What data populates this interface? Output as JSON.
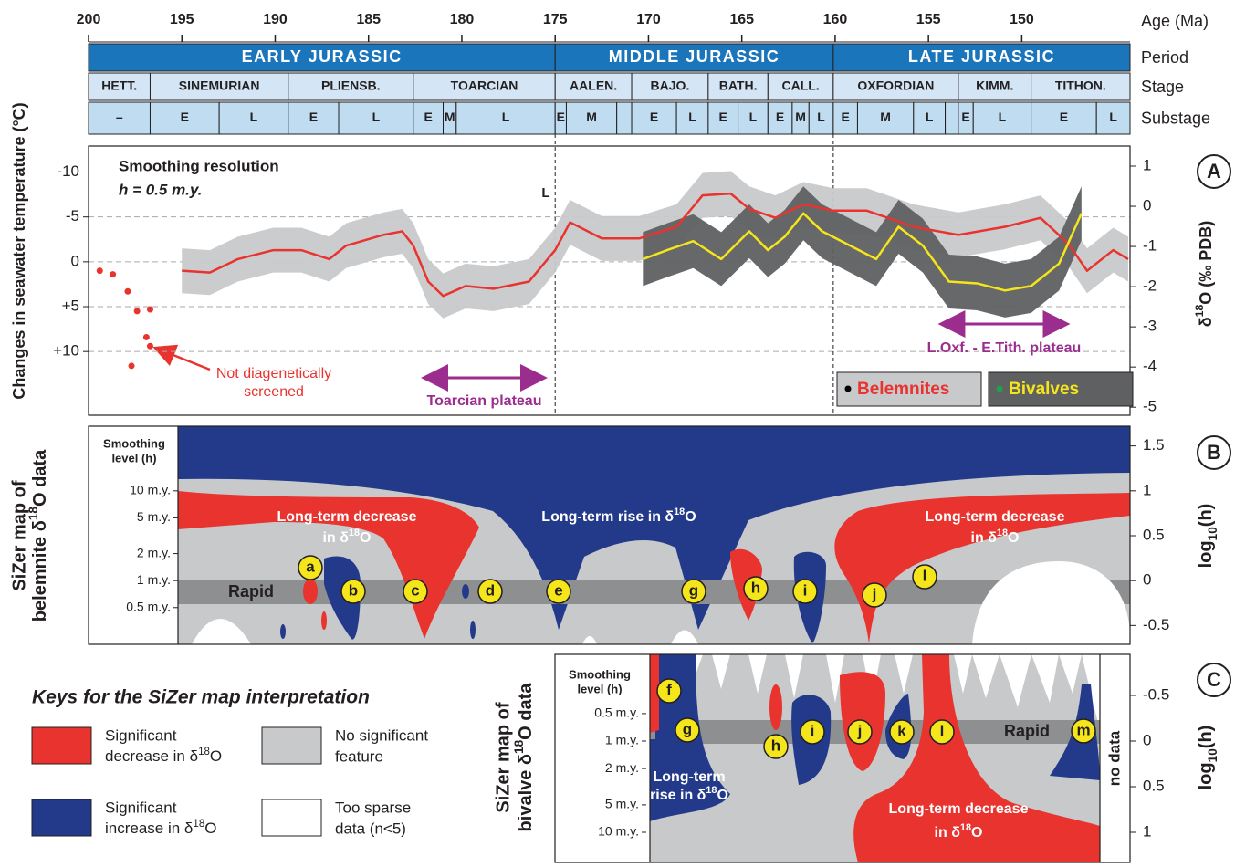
{
  "age_axis": {
    "label": "Age (Ma)",
    "xlim": [
      200,
      144.2
    ],
    "xticks": [
      200,
      195,
      190,
      185,
      180,
      175,
      170,
      165,
      160,
      155,
      150
    ]
  },
  "timescale": {
    "row_labels": [
      "Period",
      "Stage",
      "Substage"
    ],
    "periods": [
      {
        "label": "EARLY JURASSIC",
        "start": 200,
        "end": 175.0
      },
      {
        "label": "MIDDLE JURASSIC",
        "start": 175.0,
        "end": 160.1
      },
      {
        "label": "LATE JURASSIC",
        "start": 160.1,
        "end": 144.2
      }
    ],
    "stages": [
      {
        "label": "HETT.",
        "start": 200,
        "end": 196.7
      },
      {
        "label": "SINEMURIAN",
        "start": 196.7,
        "end": 189.3
      },
      {
        "label": "PLIENSB.",
        "start": 189.3,
        "end": 182.6
      },
      {
        "label": "TOARCIAN",
        "start": 182.6,
        "end": 175.0
      },
      {
        "label": "AALEN.",
        "start": 175.0,
        "end": 170.9
      },
      {
        "label": "BAJO.",
        "start": 170.9,
        "end": 166.8
      },
      {
        "label": "BATH.",
        "start": 166.8,
        "end": 163.6
      },
      {
        "label": "CALL.",
        "start": 163.6,
        "end": 160.1
      },
      {
        "label": "OXFORDIAN",
        "start": 160.1,
        "end": 153.4
      },
      {
        "label": "KIMM.",
        "start": 153.4,
        "end": 149.5
      },
      {
        "label": "TITHON.",
        "start": 149.5,
        "end": 144.2
      }
    ],
    "substages": [
      {
        "label": "–",
        "start": 200,
        "end": 196.7
      },
      {
        "label": "E",
        "start": 196.7,
        "end": 193.0
      },
      {
        "label": "L",
        "start": 193.0,
        "end": 189.3
      },
      {
        "label": "E",
        "start": 189.3,
        "end": 186.6
      },
      {
        "label": "L",
        "start": 186.6,
        "end": 182.6
      },
      {
        "label": "E",
        "start": 182.6,
        "end": 181.0
      },
      {
        "label": "M",
        "start": 181.0,
        "end": 180.3
      },
      {
        "label": "L",
        "start": 180.3,
        "end": 175.0
      },
      {
        "label": "E",
        "start": 175.0,
        "end": 174.4
      },
      {
        "label": "M",
        "start": 174.4,
        "end": 171.7
      },
      {
        "start": 171.7,
        "end": 170.9
      },
      {
        "label": "E",
        "start": 170.9,
        "end": 168.5
      },
      {
        "label": "L",
        "start": 168.5,
        "end": 166.8
      },
      {
        "label": "E",
        "start": 166.8,
        "end": 165.2
      },
      {
        "label": "L",
        "start": 165.2,
        "end": 163.6
      },
      {
        "label": "E",
        "start": 163.6,
        "end": 162.3
      },
      {
        "label": "M",
        "start": 162.3,
        "end": 161.4
      },
      {
        "label": "L",
        "start": 161.4,
        "end": 160.1
      },
      {
        "label": "E",
        "start": 160.1,
        "end": 158.8
      },
      {
        "label": "M",
        "start": 158.8,
        "end": 155.8
      },
      {
        "label": "L",
        "start": 155.8,
        "end": 154.1
      },
      {
        "start": 154.1,
        "end": 153.4
      },
      {
        "label": "E",
        "start": 153.4,
        "end": 152.6
      },
      {
        "label": "L",
        "start": 152.6,
        "end": 149.5
      },
      {
        "label": "E",
        "start": 149.5,
        "end": 146.0
      },
      {
        "label": "L",
        "start": 146.0,
        "end": 144.2
      }
    ]
  },
  "chart_data": [
    {
      "type": "line",
      "panel": "A",
      "y_label": "Changes in seawater temperature (°C)",
      "ylim": [
        17.1,
        -12.9
      ],
      "yticks": [
        -10,
        -5,
        0,
        {
          "value": 5,
          "label": "+5"
        },
        {
          "value": 10,
          "label": "+10"
        }
      ],
      "y2_label": [
        {
          "text": "δ"
        },
        {
          "text": "18",
          "sup": true
        },
        {
          "text": "O (‰ PDB)"
        }
      ],
      "y2lim": [
        -5.2,
        1.5
      ],
      "y2ticks": [
        1,
        0,
        -1,
        -2,
        -3,
        -4,
        -5
      ],
      "grid": true,
      "legend": "lower right",
      "annotations": {
        "smoothing": "Smoothing resolution",
        "resolution": "h = 0.5 m.y.",
        "late_marker": "L",
        "unscreened": [
          "Not diagenetically",
          "screened"
        ],
        "unscreened_points": {
          "color": "#e8332e",
          "x": [
            199.4,
            198.7,
            197.9,
            197.4,
            196.7,
            196.9,
            196.7,
            197.7
          ],
          "values": [
            1.0,
            1.4,
            3.3,
            5.5,
            5.3,
            8.4,
            9.4,
            11.6
          ]
        },
        "plateau_color": "#9b2d8e",
        "plateaus": [
          {
            "label": "Toarcian plateau",
            "start": 182.1,
            "end": 175.5
          },
          {
            "label": "L.Oxf. - E.Tith. plateau",
            "start": 154.4,
            "end": 147.5
          }
        ]
      },
      "series": [
        {
          "name": "Belemnites",
          "color": "#e8332e",
          "point_color": "#000000",
          "band_color": "#c8c9cb",
          "x": [
            195.0,
            193.5,
            192.0,
            190.1,
            188.6,
            187.1,
            186.2,
            184.2,
            183.2,
            182.6,
            181.8,
            181.0,
            179.8,
            178.3,
            176.4,
            175.0,
            174.2,
            172.5,
            170.5,
            168.5,
            167.1,
            165.6,
            164.6,
            163.2,
            161.7,
            160.1,
            158.3,
            155.8,
            153.4,
            150.9,
            149.0,
            147.5,
            146.5,
            145.1,
            144.3
          ],
          "values": [
            1.0,
            1.2,
            -0.3,
            -1.3,
            -1.3,
            -0.3,
            -1.8,
            -3.0,
            -3.4,
            -1.8,
            2.2,
            3.8,
            2.7,
            3.0,
            2.2,
            -1.3,
            -4.4,
            -2.6,
            -2.6,
            -3.9,
            -7.4,
            -7.6,
            -5.9,
            -4.9,
            -6.4,
            -5.7,
            -5.7,
            -3.9,
            -3.0,
            -3.9,
            -4.9,
            -2.0,
            1.0,
            -1.3,
            -0.3
          ],
          "band_min": [
            -1.5,
            -1.3,
            -2.8,
            -3.8,
            -3.8,
            -2.8,
            -4.3,
            -5.5,
            -5.9,
            -4.3,
            -0.3,
            1.3,
            0.2,
            0.5,
            -0.3,
            -3.8,
            -6.9,
            -5.1,
            -5.1,
            -6.4,
            -9.9,
            -10.1,
            -8.4,
            -7.4,
            -8.9,
            -8.2,
            -8.2,
            -6.4,
            -5.5,
            -6.4,
            -7.4,
            -4.5,
            -1.5,
            -3.8,
            -2.8
          ],
          "band_max": [
            3.5,
            3.7,
            2.2,
            1.2,
            1.2,
            2.2,
            0.7,
            -0.5,
            -0.9,
            0.7,
            4.7,
            6.3,
            5.2,
            5.5,
            4.7,
            1.2,
            -1.9,
            -0.1,
            -0.1,
            -1.4,
            -4.9,
            -5.1,
            -3.4,
            -2.4,
            -3.9,
            -3.2,
            -3.2,
            -1.4,
            -0.5,
            -1.4,
            -2.4,
            0.5,
            3.5,
            1.2,
            2.2
          ]
        },
        {
          "name": "Bivalves",
          "color": "#f5e51b",
          "point_color": "#1aa34a",
          "band_color": "#5f6062",
          "x": [
            170.3,
            169.0,
            167.6,
            166.1,
            164.6,
            163.6,
            162.7,
            161.7,
            160.7,
            159.2,
            157.8,
            156.6,
            155.3,
            153.9,
            152.4,
            150.9,
            149.5,
            148.0,
            146.8
          ],
          "values": [
            -0.3,
            -1.3,
            -2.3,
            -0.3,
            -3.4,
            -1.3,
            -2.8,
            -5.4,
            -3.4,
            -1.8,
            -0.3,
            -3.9,
            -1.8,
            2.2,
            2.4,
            3.2,
            2.7,
            0.2,
            -5.4
          ],
          "band_min": [
            -3.3,
            -4.3,
            -5.3,
            -3.3,
            -6.4,
            -4.3,
            -5.8,
            -8.4,
            -6.4,
            -4.8,
            -3.3,
            -6.9,
            -4.8,
            -0.8,
            -0.6,
            0.2,
            -0.3,
            -2.8,
            -8.4
          ],
          "band_max": [
            2.7,
            1.7,
            0.7,
            2.7,
            -0.4,
            1.7,
            0.2,
            -2.4,
            -0.4,
            1.2,
            2.7,
            -0.9,
            1.2,
            5.2,
            5.4,
            6.2,
            5.7,
            3.2,
            -2.4
          ]
        }
      ]
    }
  ],
  "sizer_maps": [
    {
      "panel": "B",
      "y_label": [
        "SiZer map of",
        [
          {
            "text": "belemnite δ"
          },
          {
            "text": "18",
            "sup": true
          },
          {
            "text": "O data"
          }
        ]
      ],
      "smoothing_title": [
        "Smoothing",
        "level (h)"
      ],
      "ylim": [
        -0.71,
        1.72
      ],
      "yticks": [
        1.5,
        1,
        0.5,
        0,
        -0.5
      ],
      "smoothing_levels": [
        {
          "value": 1,
          "label": "10 m.y."
        },
        {
          "value": 0.699,
          "label": "5 m.y."
        },
        {
          "value": 0.301,
          "label": "2 m.y."
        },
        {
          "value": 0,
          "label": "1 m.y."
        },
        {
          "value": -0.301,
          "label": "0.5 m.y."
        }
      ],
      "y_right_label": [
        {
          "text": "log"
        },
        {
          "text": "10",
          "sub": true
        },
        {
          "text": "(h)"
        }
      ],
      "rapid": "Rapid",
      "regions": [
        {
          "lines": [
            "Long-term decrease",
            [
              {
                "text": "in δ"
              },
              {
                "text": "18",
                "sup": true
              },
              {
                "text": "O"
              }
            ]
          ]
        },
        {
          "lines": [
            [
              {
                "text": "Long-term rise in δ"
              },
              {
                "text": "18",
                "sup": true
              },
              {
                "text": "O"
              }
            ]
          ]
        },
        {
          "lines": [
            "Long-term decrease",
            [
              {
                "text": "in δ"
              },
              {
                "text": "18",
                "sup": true
              },
              {
                "text": "O"
              }
            ]
          ]
        }
      ],
      "features": [
        "a",
        "b",
        "c",
        "d",
        "e",
        "g",
        "h",
        "i",
        "j",
        "l"
      ]
    },
    {
      "panel": "C",
      "y_label": [
        "SiZer map of",
        [
          {
            "text": "bivalve δ"
          },
          {
            "text": "18",
            "sup": true
          },
          {
            "text": "O data"
          }
        ]
      ],
      "smoothing_title": [
        "Smoothing",
        "level (h)"
      ],
      "ylim": [
        1.33,
        -0.95
      ],
      "yticks": [
        -0.5,
        0,
        0.5,
        1
      ],
      "smoothing_levels": [
        {
          "value": -0.301,
          "label": "0.5 m.y."
        },
        {
          "value": 0,
          "label": "1 m.y."
        },
        {
          "value": 0.301,
          "label": "2 m.y."
        },
        {
          "value": 0.699,
          "label": "5 m.y."
        },
        {
          "value": 1,
          "label": "10 m.y."
        }
      ],
      "y_right_label": [
        {
          "text": "log"
        },
        {
          "text": "10",
          "sub": true
        },
        {
          "text": "(h)"
        }
      ],
      "rapid": "Rapid",
      "no_data": "no data",
      "regions": [
        {
          "lines": [
            "Long-term",
            [
              {
                "text": "rise in δ"
              },
              {
                "text": "18",
                "sup": true
              },
              {
                "text": "O"
              }
            ]
          ]
        },
        {
          "lines": [
            "Long-term decrease",
            [
              {
                "text": "in δ"
              },
              {
                "text": "18",
                "sup": true
              },
              {
                "text": "O"
              }
            ]
          ]
        }
      ],
      "features": [
        "f",
        "g",
        "h",
        "i",
        "j",
        "k",
        "l",
        "m"
      ]
    }
  ],
  "keys": {
    "title": "Keys for the SiZer map interpretation",
    "items": [
      {
        "color": "#e8332e",
        "lines": [
          "Significant",
          [
            {
              "text": "decrease in δ"
            },
            {
              "text": "18",
              "sup": true
            },
            {
              "text": "O"
            }
          ]
        ]
      },
      {
        "color": "#c8c9cb",
        "lines": [
          "No significant",
          "feature"
        ]
      },
      {
        "color": "#233a8b",
        "lines": [
          "Significant",
          [
            {
              "text": "increase in δ"
            },
            {
              "text": "18",
              "sup": true
            },
            {
              "text": "O"
            }
          ]
        ]
      },
      {
        "color": "#ffffff",
        "lines": [
          "Too sparse",
          "data (n<5)"
        ]
      }
    ]
  }
}
